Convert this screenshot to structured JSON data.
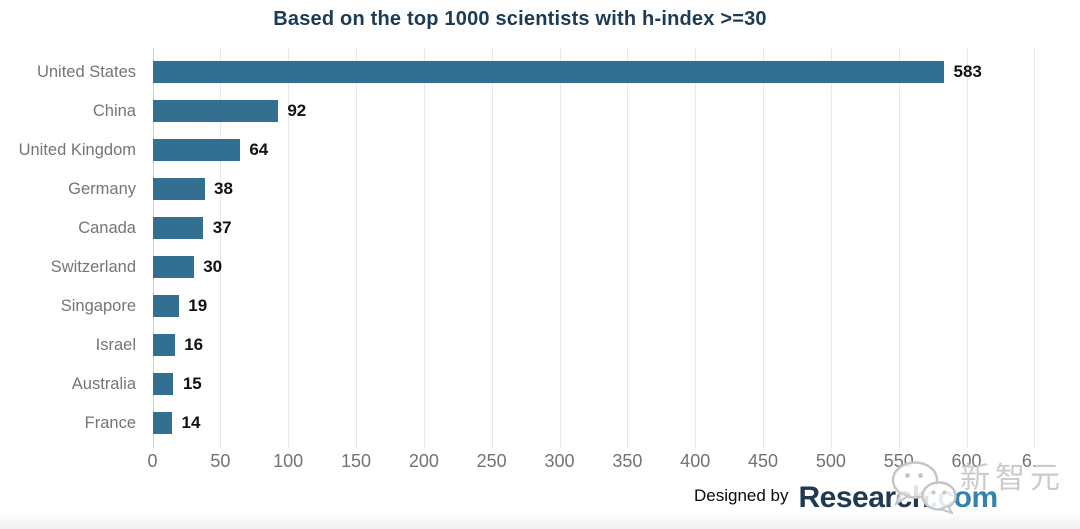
{
  "chart_data": {
    "type": "bar",
    "orientation": "horizontal",
    "title": "Based on the top 1000 scientists with h-index >=30",
    "categories": [
      "United States",
      "China",
      "United Kingdom",
      "Germany",
      "Canada",
      "Switzerland",
      "Singapore",
      "Israel",
      "Australia",
      "France"
    ],
    "values": [
      583,
      92,
      64,
      38,
      37,
      30,
      19,
      16,
      15,
      14
    ],
    "xlabel": "",
    "ylabel": "",
    "xlim": [
      0,
      683
    ],
    "x_ticks": [
      0,
      50,
      100,
      150,
      200,
      250,
      300,
      350,
      400,
      450,
      500,
      550,
      600,
      650
    ],
    "x_tick_labels": [
      "0",
      "50",
      "100",
      "150",
      "200",
      "250",
      "300",
      "350",
      "400",
      "450",
      "500",
      "550",
      "600",
      "6..."
    ],
    "grid": true,
    "legend": "none",
    "bar_color": "#336f91",
    "title_color": "#1c3b57",
    "category_label_color": "#757575",
    "value_label_color": "#121212",
    "tick_label_color": "#737373"
  },
  "footer": {
    "designed_by": "Designed by",
    "brand_name": "Research",
    "brand_tld": ".com",
    "brand_name_color": "#203a52",
    "brand_tld_color": "#3583ad"
  },
  "watermark": {
    "icon": "wechat-icon",
    "text": "新智元",
    "color": "#c9c9c9"
  }
}
